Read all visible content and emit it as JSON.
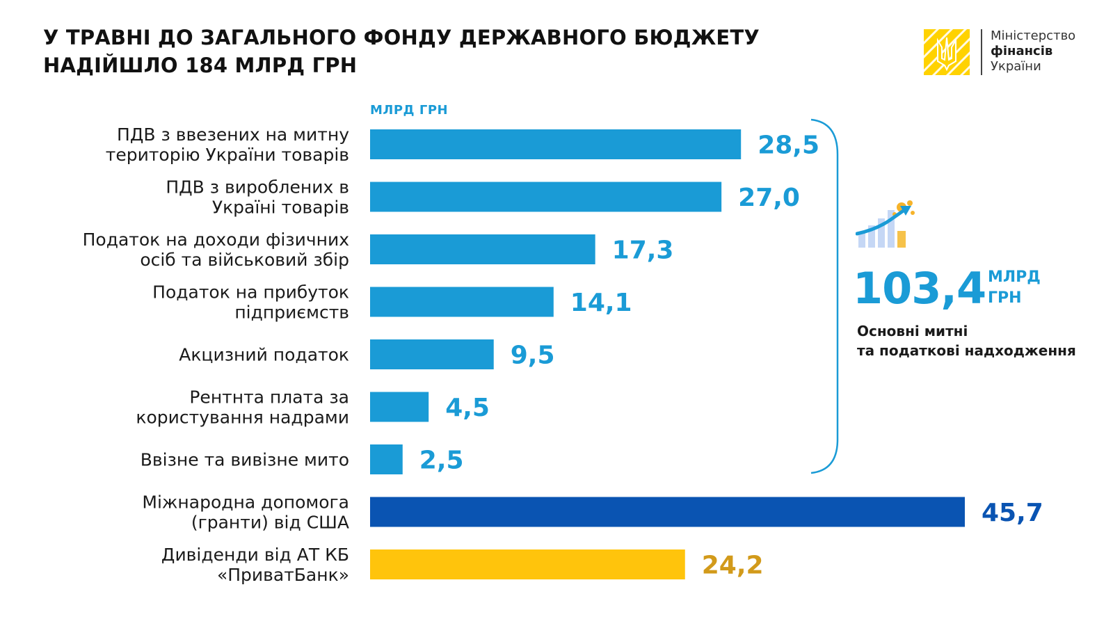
{
  "title": {
    "line1": "У ТРАВНІ ДО ЗАГАЛЬНОГО ФОНДУ ДЕРЖАВНОГО БЮДЖЕТУ",
    "line2": "НАДІЙШЛО 184 МЛРД ГРН"
  },
  "logo": {
    "line1": "Міністерство",
    "line2": "фінансів",
    "line3": "України",
    "emblem_color": "#ffd200",
    "icon": "trident-emblem-icon"
  },
  "unit_label": "МЛРД ГРН",
  "total": {
    "value": "103,4",
    "unit_line1": "МЛРД",
    "unit_line2": "ГРН",
    "caption_line1": "Основні митні",
    "caption_line2": "та податкові надходження",
    "icon": "growth-chart-coins-icon"
  },
  "colors": {
    "primary_blue": "#1a9bd6",
    "dark_blue": "#0a54b2",
    "yellow": "#ffc40c",
    "yellow_label": "#d29a1a"
  },
  "chart_data": {
    "type": "bar",
    "orientation": "horizontal",
    "xlim": [
      0,
      45.7
    ],
    "categories": [
      [
        "ПДВ з ввезених на митну",
        "територію України товарів"
      ],
      [
        "ПДВ з вироблених в",
        "Україні товарів"
      ],
      [
        "Податок на доходи фізичних",
        "осіб та військовий збір"
      ],
      [
        "Податок на прибуток",
        "підприємств"
      ],
      [
        "Акцизний податок"
      ],
      [
        "Рентнта плата за",
        "користування надрами"
      ],
      [
        "Ввізне та вивізне мито"
      ],
      [
        "Міжнародна допомога",
        "(гранти) від США"
      ],
      [
        "Дивіденди від АТ КБ",
        "«ПриватБанк»"
      ]
    ],
    "values": [
      28.5,
      27.0,
      17.3,
      14.1,
      9.5,
      4.5,
      2.5,
      45.7,
      24.2
    ],
    "value_labels": [
      "28,5",
      "27,0",
      "17,3",
      "14,1",
      "9,5",
      "4,5",
      "2,5",
      "45,7",
      "24,2"
    ],
    "bar_colors": [
      "#1a9bd6",
      "#1a9bd6",
      "#1a9bd6",
      "#1a9bd6",
      "#1a9bd6",
      "#1a9bd6",
      "#1a9bd6",
      "#0a54b2",
      "#ffc40c"
    ],
    "label_colors": [
      "#1a9bd6",
      "#1a9bd6",
      "#1a9bd6",
      "#1a9bd6",
      "#1a9bd6",
      "#1a9bd6",
      "#1a9bd6",
      "#0a54b2",
      "#d29a1a"
    ],
    "bracketed_group_total": "103,4",
    "grid": false,
    "legend": "none"
  }
}
